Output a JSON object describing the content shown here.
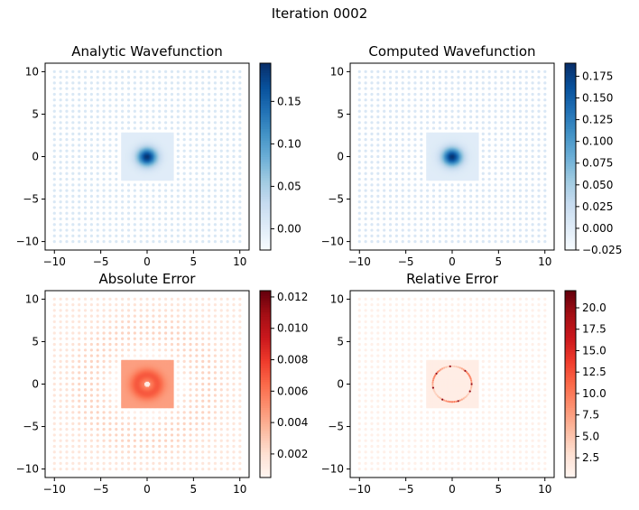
{
  "figure": {
    "suptitle": "Iteration 0002"
  },
  "colors": {
    "blues": [
      "#f7fbff",
      "#deebf7",
      "#c6dbef",
      "#9ecae1",
      "#6baed6",
      "#4292c6",
      "#2171b5",
      "#08519c",
      "#08306b"
    ],
    "reds": [
      "#fff5f0",
      "#fee0d2",
      "#fcbba1",
      "#fc9272",
      "#fb6a4a",
      "#ef3b2c",
      "#cb181d",
      "#a50f15",
      "#67000d"
    ]
  },
  "chart_data": [
    {
      "type": "heatmap",
      "title": "Analytic Wavefunction",
      "xlim": [
        -11,
        11
      ],
      "ylim": [
        -11,
        11
      ],
      "xticks": [
        -10,
        -5,
        0,
        5,
        10
      ],
      "yticks": [
        -10,
        -5,
        0,
        5,
        10
      ],
      "colormap": "Blues",
      "clim": [
        -0.025,
        0.195
      ],
      "colorbar_ticks": [
        "0.00",
        "0.05",
        "0.10",
        "0.15"
      ],
      "colorbar_tick_values": [
        0.0,
        0.05,
        0.1,
        0.15
      ],
      "peak_value": 0.19,
      "peak_location": [
        0,
        0
      ],
      "grid": false
    },
    {
      "type": "heatmap",
      "title": "Computed Wavefunction",
      "xlim": [
        -11,
        11
      ],
      "ylim": [
        -11,
        11
      ],
      "xticks": [
        -10,
        -5,
        0,
        5,
        10
      ],
      "yticks": [
        -10,
        -5,
        0,
        5,
        10
      ],
      "colormap": "Blues",
      "clim": [
        -0.025,
        0.19
      ],
      "colorbar_ticks": [
        "−0.025",
        "0.000",
        "0.025",
        "0.050",
        "0.075",
        "0.100",
        "0.125",
        "0.150",
        "0.175"
      ],
      "colorbar_tick_values": [
        -0.025,
        0.0,
        0.025,
        0.05,
        0.075,
        0.1,
        0.125,
        0.15,
        0.175
      ],
      "peak_value": 0.185,
      "peak_location": [
        0,
        0
      ],
      "grid": false
    },
    {
      "type": "heatmap",
      "title": "Absolute Error",
      "xlim": [
        -11,
        11
      ],
      "ylim": [
        -11,
        11
      ],
      "xticks": [
        -10,
        -5,
        0,
        5,
        10
      ],
      "yticks": [
        -10,
        -5,
        0,
        5,
        10
      ],
      "colormap": "Reds",
      "clim": [
        0.0005,
        0.0124
      ],
      "colorbar_ticks": [
        "0.002",
        "0.004",
        "0.006",
        "0.008",
        "0.010",
        "0.012"
      ],
      "colorbar_tick_values": [
        0.002,
        0.004,
        0.006,
        0.008,
        0.01,
        0.012
      ],
      "grid": false
    },
    {
      "type": "heatmap",
      "title": "Relative Error",
      "xlim": [
        -11,
        11
      ],
      "ylim": [
        -11,
        11
      ],
      "xticks": [
        -10,
        -5,
        0,
        5,
        10
      ],
      "yticks": [
        -10,
        -5,
        0,
        5,
        10
      ],
      "colormap": "Reds",
      "clim": [
        0.2,
        22
      ],
      "colorbar_ticks": [
        "2.5",
        "5.0",
        "7.5",
        "10.0",
        "12.5",
        "15.0",
        "17.5",
        "20.0"
      ],
      "colorbar_tick_values": [
        2.5,
        5.0,
        7.5,
        10.0,
        12.5,
        15.0,
        17.5,
        20.0
      ],
      "grid": false
    }
  ]
}
